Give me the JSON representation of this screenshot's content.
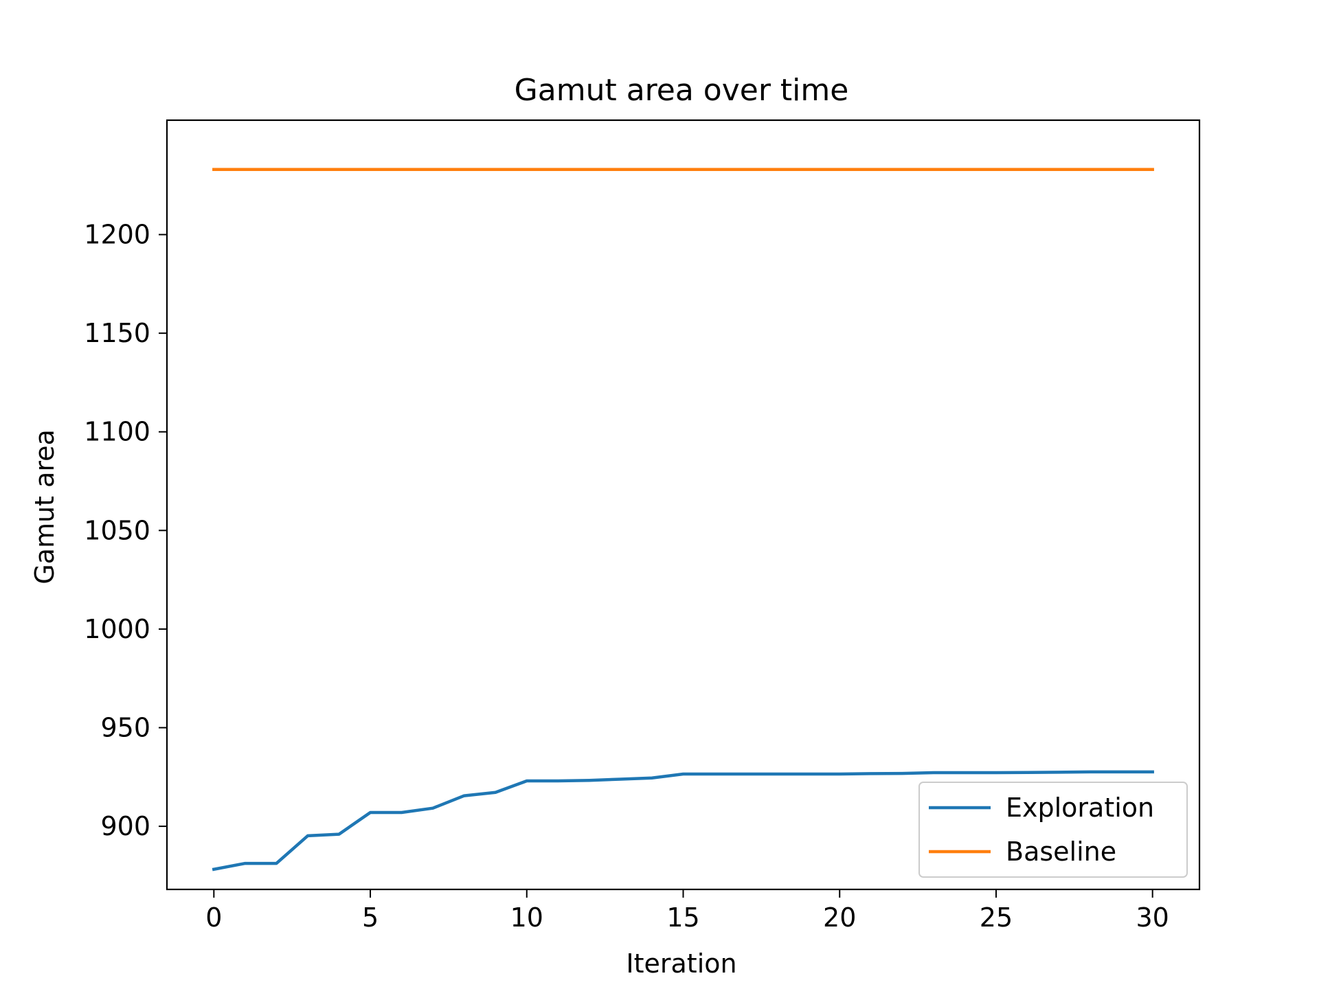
{
  "chart_data": {
    "type": "line",
    "title": "Gamut area over time",
    "xlabel": "Iteration",
    "ylabel": "Gamut area",
    "xlim": [
      -1.5,
      31.5
    ],
    "ylim": [
      868,
      1258
    ],
    "xticks": [
      0,
      5,
      10,
      15,
      20,
      25,
      30
    ],
    "yticks": [
      900,
      950,
      1000,
      1050,
      1100,
      1150,
      1200
    ],
    "grid": false,
    "legend_position": "lower right",
    "x": [
      0,
      1,
      2,
      3,
      4,
      5,
      6,
      7,
      8,
      9,
      10,
      11,
      12,
      13,
      14,
      15,
      16,
      17,
      18,
      19,
      20,
      21,
      22,
      23,
      24,
      25,
      26,
      27,
      28,
      29,
      30
    ],
    "series": [
      {
        "name": "Exploration",
        "color": "#1f77b4",
        "values": [
          878.2,
          881.2,
          881.2,
          895.2,
          896.0,
          907.0,
          907.0,
          909.2,
          915.5,
          917.2,
          923.0,
          923.0,
          923.3,
          923.9,
          924.5,
          926.5,
          926.5,
          926.5,
          926.5,
          926.5,
          926.5,
          926.7,
          926.8,
          927.2,
          927.2,
          927.2,
          927.3,
          927.4,
          927.6,
          927.6,
          927.6
        ]
      },
      {
        "name": "Baseline",
        "color": "#ff7f0e",
        "values": [
          1233,
          1233,
          1233,
          1233,
          1233,
          1233,
          1233,
          1233,
          1233,
          1233,
          1233,
          1233,
          1233,
          1233,
          1233,
          1233,
          1233,
          1233,
          1233,
          1233,
          1233,
          1233,
          1233,
          1233,
          1233,
          1233,
          1233,
          1233,
          1233,
          1233,
          1233
        ]
      }
    ]
  }
}
